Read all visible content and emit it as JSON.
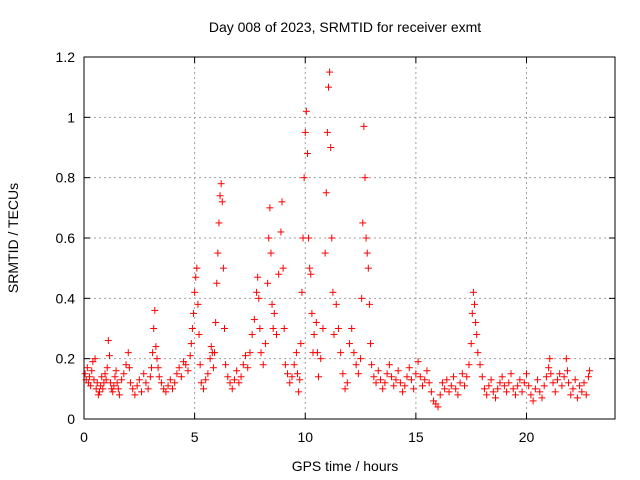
{
  "chart_data": {
    "type": "scatter",
    "title": "Day 008 of 2023, SRMTID for receiver exmt",
    "xlabel": "GPS time / hours",
    "ylabel": "SRMTID / TECUs",
    "xlim": [
      0,
      24
    ],
    "ylim": [
      0,
      1.2
    ],
    "xticks": [
      0,
      5,
      10,
      15,
      20
    ],
    "xtick_labels": [
      "0",
      "5",
      "10",
      "15",
      "20"
    ],
    "yticks": [
      0,
      0.2,
      0.4,
      0.6,
      0.8,
      1.0,
      1.2
    ],
    "ytick_labels": [
      "0",
      "0.2",
      "0.4",
      "0.6",
      "0.8",
      "1",
      "1.2"
    ],
    "grid": true,
    "marker": "+",
    "color": "#ff0000",
    "series": [
      {
        "name": "SRMTID",
        "points": [
          [
            0.05,
            0.15
          ],
          [
            0.1,
            0.13
          ],
          [
            0.15,
            0.17
          ],
          [
            0.2,
            0.12
          ],
          [
            0.25,
            0.14
          ],
          [
            0.3,
            0.11
          ],
          [
            0.35,
            0.16
          ],
          [
            0.4,
            0.19
          ],
          [
            0.45,
            0.13
          ],
          [
            0.5,
            0.2
          ],
          [
            0.55,
            0.1
          ],
          [
            0.6,
            0.12
          ],
          [
            0.65,
            0.08
          ],
          [
            0.7,
            0.09
          ],
          [
            0.75,
            0.11
          ],
          [
            0.8,
            0.14
          ],
          [
            0.85,
            0.1
          ],
          [
            0.9,
            0.12
          ],
          [
            0.95,
            0.15
          ],
          [
            1.0,
            0.13
          ],
          [
            1.05,
            0.17
          ],
          [
            1.1,
            0.26
          ],
          [
            1.15,
            0.21
          ],
          [
            1.2,
            0.12
          ],
          [
            1.25,
            0.1
          ],
          [
            1.3,
            0.09
          ],
          [
            1.35,
            0.11
          ],
          [
            1.4,
            0.14
          ],
          [
            1.45,
            0.16
          ],
          [
            1.5,
            0.12
          ],
          [
            1.55,
            0.1
          ],
          [
            1.6,
            0.08
          ],
          [
            1.7,
            0.13
          ],
          [
            1.8,
            0.15
          ],
          [
            1.9,
            0.18
          ],
          [
            2.0,
            0.22
          ],
          [
            2.05,
            0.17
          ],
          [
            2.1,
            0.12
          ],
          [
            2.2,
            0.1
          ],
          [
            2.3,
            0.08
          ],
          [
            2.4,
            0.11
          ],
          [
            2.5,
            0.13
          ],
          [
            2.6,
            0.09
          ],
          [
            2.7,
            0.15
          ],
          [
            2.8,
            0.12
          ],
          [
            2.9,
            0.1
          ],
          [
            3.0,
            0.14
          ],
          [
            3.05,
            0.17
          ],
          [
            3.1,
            0.22
          ],
          [
            3.15,
            0.3
          ],
          [
            3.2,
            0.36
          ],
          [
            3.25,
            0.24
          ],
          [
            3.3,
            0.2
          ],
          [
            3.35,
            0.17
          ],
          [
            3.4,
            0.14
          ],
          [
            3.5,
            0.12
          ],
          [
            3.6,
            0.1
          ],
          [
            3.7,
            0.09
          ],
          [
            3.8,
            0.11
          ],
          [
            3.9,
            0.13
          ],
          [
            4.0,
            0.1
          ],
          [
            4.1,
            0.12
          ],
          [
            4.2,
            0.15
          ],
          [
            4.3,
            0.17
          ],
          [
            4.4,
            0.14
          ],
          [
            4.5,
            0.19
          ],
          [
            4.6,
            0.18
          ],
          [
            4.7,
            0.16
          ],
          [
            4.8,
            0.21
          ],
          [
            4.85,
            0.25
          ],
          [
            4.9,
            0.3
          ],
          [
            4.95,
            0.35
          ],
          [
            5.0,
            0.42
          ],
          [
            5.05,
            0.47
          ],
          [
            5.1,
            0.5
          ],
          [
            5.15,
            0.38
          ],
          [
            5.2,
            0.28
          ],
          [
            5.25,
            0.18
          ],
          [
            5.3,
            0.12
          ],
          [
            5.4,
            0.1
          ],
          [
            5.5,
            0.13
          ],
          [
            5.6,
            0.15
          ],
          [
            5.7,
            0.2
          ],
          [
            5.75,
            0.24
          ],
          [
            5.8,
            0.22
          ],
          [
            5.85,
            0.17
          ],
          [
            5.9,
            0.22
          ],
          [
            5.95,
            0.32
          ],
          [
            6.0,
            0.45
          ],
          [
            6.05,
            0.55
          ],
          [
            6.1,
            0.65
          ],
          [
            6.15,
            0.74
          ],
          [
            6.2,
            0.78
          ],
          [
            6.25,
            0.72
          ],
          [
            6.3,
            0.5
          ],
          [
            6.35,
            0.3
          ],
          [
            6.4,
            0.18
          ],
          [
            6.5,
            0.14
          ],
          [
            6.6,
            0.12
          ],
          [
            6.7,
            0.1
          ],
          [
            6.8,
            0.13
          ],
          [
            6.9,
            0.16
          ],
          [
            7.0,
            0.12
          ],
          [
            7.1,
            0.14
          ],
          [
            7.2,
            0.18
          ],
          [
            7.3,
            0.21
          ],
          [
            7.4,
            0.17
          ],
          [
            7.5,
            0.22
          ],
          [
            7.6,
            0.28
          ],
          [
            7.7,
            0.33
          ],
          [
            7.8,
            0.42
          ],
          [
            7.85,
            0.47
          ],
          [
            7.9,
            0.4
          ],
          [
            7.95,
            0.3
          ],
          [
            8.0,
            0.22
          ],
          [
            8.1,
            0.18
          ],
          [
            8.2,
            0.25
          ],
          [
            8.3,
            0.45
          ],
          [
            8.35,
            0.6
          ],
          [
            8.4,
            0.7
          ],
          [
            8.45,
            0.55
          ],
          [
            8.5,
            0.38
          ],
          [
            8.55,
            0.3
          ],
          [
            8.6,
            0.35
          ],
          [
            8.7,
            0.28
          ],
          [
            8.8,
            0.48
          ],
          [
            8.9,
            0.62
          ],
          [
            8.95,
            0.72
          ],
          [
            9.0,
            0.5
          ],
          [
            9.05,
            0.3
          ],
          [
            9.1,
            0.18
          ],
          [
            9.2,
            0.15
          ],
          [
            9.3,
            0.12
          ],
          [
            9.4,
            0.14
          ],
          [
            9.5,
            0.18
          ],
          [
            9.6,
            0.22
          ],
          [
            9.65,
            0.15
          ],
          [
            9.7,
            0.09
          ],
          [
            9.75,
            0.13
          ],
          [
            9.8,
            0.25
          ],
          [
            9.85,
            0.42
          ],
          [
            9.9,
            0.6
          ],
          [
            9.95,
            0.8
          ],
          [
            10.0,
            0.95
          ],
          [
            10.05,
            1.02
          ],
          [
            10.1,
            0.88
          ],
          [
            10.15,
            0.6
          ],
          [
            10.2,
            0.5
          ],
          [
            10.25,
            0.48
          ],
          [
            10.3,
            0.35
          ],
          [
            10.35,
            0.22
          ],
          [
            10.4,
            0.28
          ],
          [
            10.5,
            0.32
          ],
          [
            10.55,
            0.22
          ],
          [
            10.6,
            0.14
          ],
          [
            10.7,
            0.2
          ],
          [
            10.8,
            0.3
          ],
          [
            10.9,
            0.55
          ],
          [
            10.95,
            0.75
          ],
          [
            11.0,
            0.95
          ],
          [
            11.05,
            1.1
          ],
          [
            11.1,
            1.15
          ],
          [
            11.15,
            0.9
          ],
          [
            11.2,
            0.6
          ],
          [
            11.25,
            0.42
          ],
          [
            11.3,
            0.28
          ],
          [
            11.4,
            0.38
          ],
          [
            11.5,
            0.3
          ],
          [
            11.6,
            0.22
          ],
          [
            11.7,
            0.15
          ],
          [
            11.8,
            0.1
          ],
          [
            11.9,
            0.12
          ],
          [
            12.0,
            0.25
          ],
          [
            12.1,
            0.3
          ],
          [
            12.2,
            0.22
          ],
          [
            12.3,
            0.18
          ],
          [
            12.4,
            0.15
          ],
          [
            12.5,
            0.2
          ],
          [
            12.55,
            0.4
          ],
          [
            12.6,
            0.65
          ],
          [
            12.65,
            0.97
          ],
          [
            12.7,
            0.8
          ],
          [
            12.75,
            0.6
          ],
          [
            12.8,
            0.55
          ],
          [
            12.85,
            0.5
          ],
          [
            12.9,
            0.38
          ],
          [
            12.95,
            0.25
          ],
          [
            13.0,
            0.18
          ],
          [
            13.1,
            0.14
          ],
          [
            13.2,
            0.12
          ],
          [
            13.3,
            0.16
          ],
          [
            13.4,
            0.13
          ],
          [
            13.5,
            0.1
          ],
          [
            13.6,
            0.12
          ],
          [
            13.7,
            0.15
          ],
          [
            13.8,
            0.18
          ],
          [
            13.9,
            0.14
          ],
          [
            14.0,
            0.11
          ],
          [
            14.1,
            0.13
          ],
          [
            14.2,
            0.16
          ],
          [
            14.3,
            0.12
          ],
          [
            14.4,
            0.09
          ],
          [
            14.5,
            0.11
          ],
          [
            14.6,
            0.14
          ],
          [
            14.7,
            0.17
          ],
          [
            14.8,
            0.13
          ],
          [
            14.9,
            0.1
          ],
          [
            15.0,
            0.15
          ],
          [
            15.1,
            0.19
          ],
          [
            15.2,
            0.14
          ],
          [
            15.3,
            0.11
          ],
          [
            15.4,
            0.13
          ],
          [
            15.5,
            0.16
          ],
          [
            15.6,
            0.12
          ],
          [
            15.7,
            0.09
          ],
          [
            15.8,
            0.06
          ],
          [
            15.9,
            0.05
          ],
          [
            16.0,
            0.04
          ],
          [
            16.1,
            0.08
          ],
          [
            16.2,
            0.12
          ],
          [
            16.3,
            0.1
          ],
          [
            16.4,
            0.13
          ],
          [
            16.5,
            0.09
          ],
          [
            16.6,
            0.11
          ],
          [
            16.7,
            0.14
          ],
          [
            16.8,
            0.1
          ],
          [
            16.9,
            0.08
          ],
          [
            17.0,
            0.12
          ],
          [
            17.1,
            0.15
          ],
          [
            17.2,
            0.11
          ],
          [
            17.3,
            0.14
          ],
          [
            17.4,
            0.18
          ],
          [
            17.5,
            0.25
          ],
          [
            17.55,
            0.35
          ],
          [
            17.6,
            0.42
          ],
          [
            17.65,
            0.38
          ],
          [
            17.7,
            0.32
          ],
          [
            17.75,
            0.28
          ],
          [
            17.8,
            0.22
          ],
          [
            17.9,
            0.18
          ],
          [
            18.0,
            0.14
          ],
          [
            18.1,
            0.1
          ],
          [
            18.2,
            0.08
          ],
          [
            18.3,
            0.11
          ],
          [
            18.4,
            0.13
          ],
          [
            18.5,
            0.09
          ],
          [
            18.6,
            0.07
          ],
          [
            18.7,
            0.1
          ],
          [
            18.8,
            0.12
          ],
          [
            18.9,
            0.14
          ],
          [
            19.0,
            0.11
          ],
          [
            19.1,
            0.09
          ],
          [
            19.2,
            0.12
          ],
          [
            19.3,
            0.15
          ],
          [
            19.4,
            0.1
          ],
          [
            19.5,
            0.08
          ],
          [
            19.6,
            0.11
          ],
          [
            19.7,
            0.13
          ],
          [
            19.8,
            0.09
          ],
          [
            19.9,
            0.12
          ],
          [
            20.0,
            0.15
          ],
          [
            20.1,
            0.11
          ],
          [
            20.2,
            0.08
          ],
          [
            20.3,
            0.06
          ],
          [
            20.4,
            0.1
          ],
          [
            20.5,
            0.13
          ],
          [
            20.6,
            0.09
          ],
          [
            20.7,
            0.07
          ],
          [
            20.8,
            0.11
          ],
          [
            20.9,
            0.14
          ],
          [
            21.0,
            0.17
          ],
          [
            21.05,
            0.2
          ],
          [
            21.1,
            0.15
          ],
          [
            21.2,
            0.12
          ],
          [
            21.3,
            0.09
          ],
          [
            21.4,
            0.13
          ],
          [
            21.5,
            0.15
          ],
          [
            21.6,
            0.11
          ],
          [
            21.7,
            0.14
          ],
          [
            21.8,
            0.2
          ],
          [
            21.85,
            0.16
          ],
          [
            21.9,
            0.12
          ],
          [
            22.0,
            0.08
          ],
          [
            22.1,
            0.1
          ],
          [
            22.2,
            0.13
          ],
          [
            22.3,
            0.07
          ],
          [
            22.4,
            0.11
          ],
          [
            22.5,
            0.09
          ],
          [
            22.6,
            0.12
          ],
          [
            22.7,
            0.08
          ],
          [
            22.8,
            0.14
          ],
          [
            22.85,
            0.16
          ]
        ]
      }
    ]
  }
}
